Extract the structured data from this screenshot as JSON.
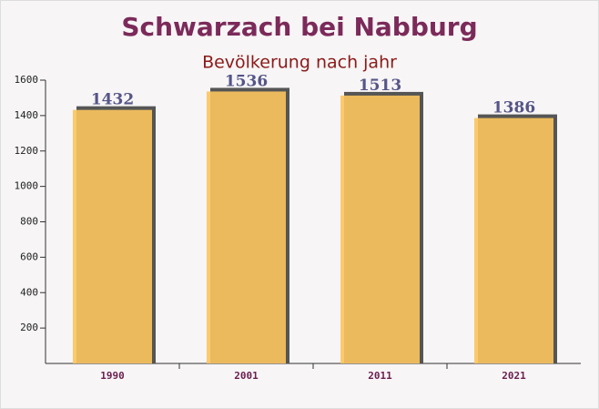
{
  "chart_data": {
    "type": "bar",
    "title": "Schwarzach bei Nabburg",
    "subtitle": "Bevölkerung nach jahr",
    "categories": [
      "1990",
      "2001",
      "2011",
      "2021"
    ],
    "values": [
      1432,
      1536,
      1513,
      1386
    ],
    "color": "#fcc55e",
    "ylim": [
      0,
      1600
    ],
    "yticks": [
      200,
      400,
      600,
      800,
      1000,
      1200,
      1400,
      1600
    ]
  }
}
